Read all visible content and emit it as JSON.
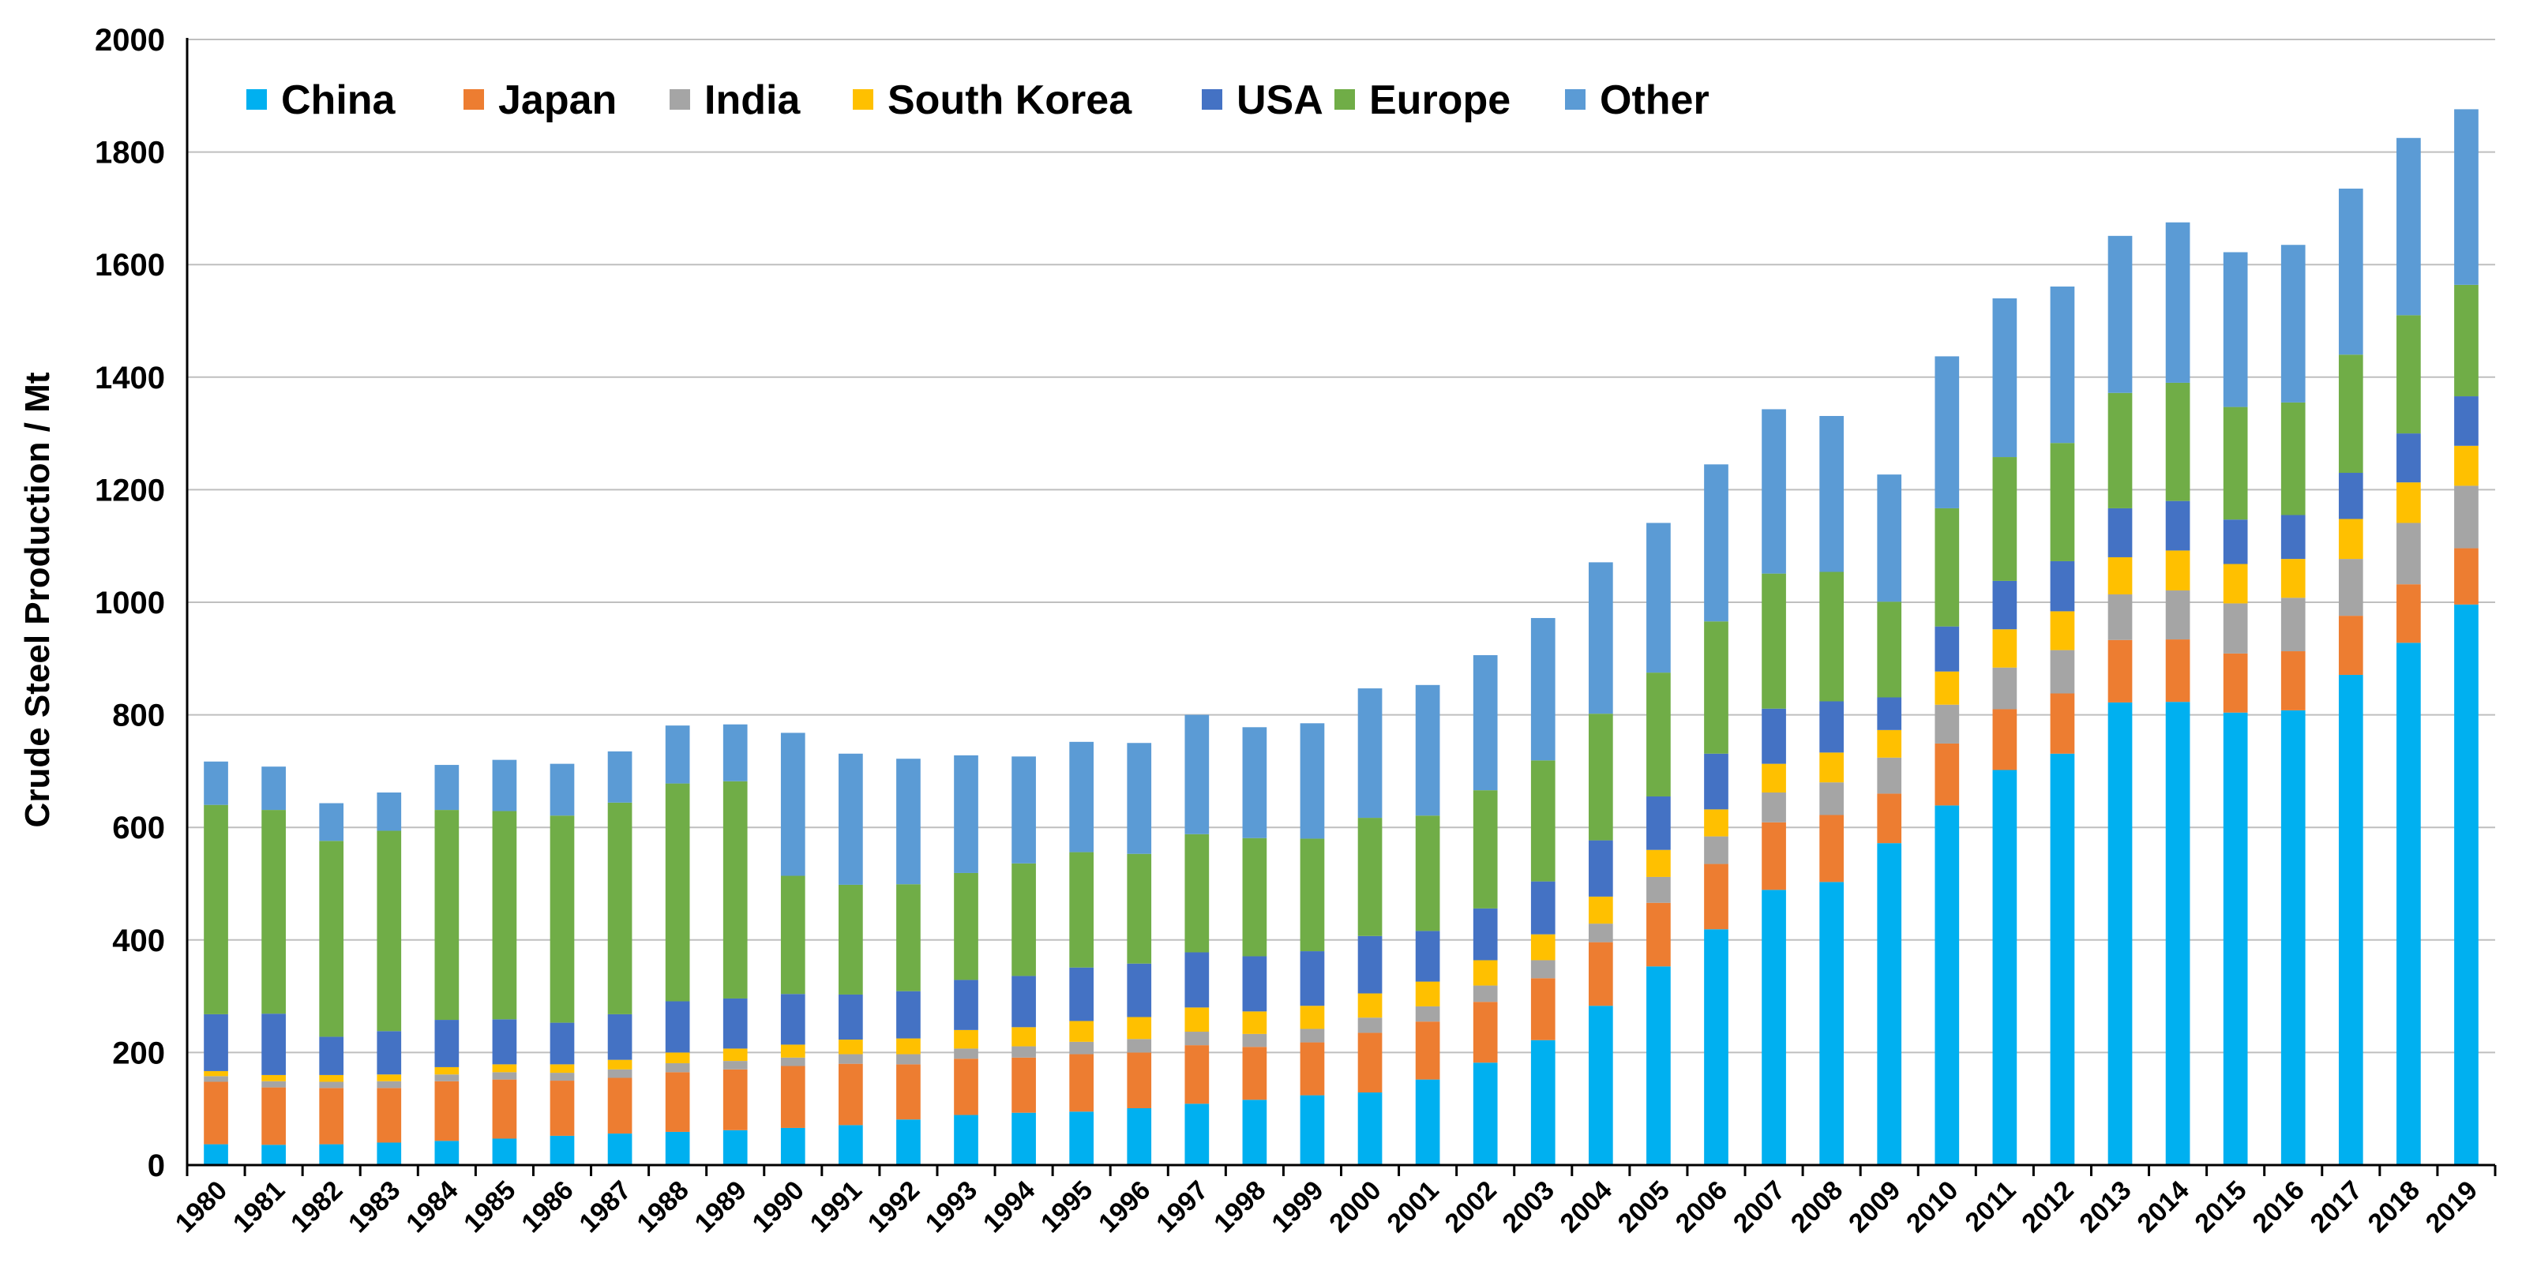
{
  "chart_data": {
    "type": "bar",
    "stacked": true,
    "title": "",
    "xlabel": "",
    "ylabel": "Crude Steel Production / Mt",
    "ylim": [
      0,
      2000
    ],
    "yticks": [
      "0",
      "200",
      "400",
      "600",
      "800",
      "1000",
      "1200",
      "1400",
      "1600",
      "1800",
      "2000"
    ],
    "grid": true,
    "legend_position": "top-left",
    "categories": [
      "1980",
      "1981",
      "1982",
      "1983",
      "1984",
      "1985",
      "1986",
      "1987",
      "1988",
      "1989",
      "1990",
      "1991",
      "1992",
      "1993",
      "1994",
      "1995",
      "1996",
      "1997",
      "1998",
      "1999",
      "2000",
      "2001",
      "2002",
      "2003",
      "2004",
      "2005",
      "2006",
      "2007",
      "2008",
      "2009",
      "2010",
      "2011",
      "2012",
      "2013",
      "2014",
      "2015",
      "2016",
      "2017",
      "2018",
      "2019"
    ],
    "series": [
      {
        "name": "China",
        "color": "#00B0F0",
        "values": [
          37,
          36,
          37,
          40,
          43,
          47,
          52,
          56,
          59,
          62,
          66,
          71,
          81,
          89,
          93,
          95,
          101,
          109,
          116,
          124,
          129,
          152,
          182,
          222,
          283,
          353,
          419,
          489,
          503,
          572,
          639,
          702,
          731,
          822,
          823,
          804,
          808,
          871,
          928,
          996
        ]
      },
      {
        "name": "Japan",
        "color": "#ED7D31",
        "values": [
          111,
          102,
          100,
          97,
          106,
          105,
          98,
          99,
          106,
          108,
          110,
          109,
          98,
          100,
          98,
          102,
          99,
          104,
          94,
          94,
          106,
          103,
          108,
          110,
          113,
          113,
          116,
          120,
          119,
          88,
          110,
          108,
          107,
          111,
          111,
          105,
          105,
          105,
          104,
          100
        ]
      },
      {
        "name": "India",
        "color": "#A5A5A5",
        "values": [
          10,
          11,
          11,
          12,
          12,
          13,
          14,
          15,
          16,
          15,
          15,
          17,
          18,
          18,
          20,
          22,
          24,
          24,
          23,
          24,
          27,
          27,
          29,
          32,
          33,
          46,
          49,
          53,
          58,
          64,
          69,
          74,
          77,
          81,
          87,
          89,
          95,
          101,
          109,
          111
        ]
      },
      {
        "name": "South Korea",
        "color": "#FFC000",
        "values": [
          9,
          11,
          12,
          12,
          13,
          14,
          15,
          17,
          19,
          22,
          23,
          26,
          28,
          33,
          34,
          37,
          39,
          43,
          40,
          41,
          43,
          44,
          45,
          46,
          48,
          48,
          48,
          51,
          53,
          49,
          59,
          68,
          69,
          66,
          71,
          70,
          69,
          71,
          72,
          71
        ]
      },
      {
        "name": "USA",
        "color": "#4472C4",
        "values": [
          101,
          109,
          68,
          77,
          84,
          80,
          74,
          81,
          91,
          89,
          90,
          80,
          84,
          89,
          91,
          95,
          95,
          98,
          98,
          97,
          102,
          90,
          92,
          94,
          100,
          95,
          99,
          98,
          91,
          58,
          80,
          86,
          89,
          87,
          88,
          79,
          78,
          82,
          87,
          88
        ]
      },
      {
        "name": "Europe",
        "color": "#70AD47",
        "values": [
          372,
          362,
          348,
          356,
          373,
          370,
          368,
          376,
          387,
          386,
          210,
          195,
          190,
          190,
          200,
          205,
          195,
          210,
          210,
          200,
          210,
          205,
          210,
          215,
          225,
          220,
          235,
          240,
          230,
          170,
          210,
          220,
          210,
          205,
          210,
          200,
          200,
          210,
          210,
          198
        ]
      },
      {
        "name": "Other",
        "color": "#5B9BD5",
        "values": [
          77,
          77,
          67,
          68,
          80,
          91,
          92,
          91,
          103,
          101,
          254,
          233,
          223,
          209,
          190,
          196,
          197,
          212,
          197,
          205,
          230,
          232,
          240,
          253,
          269,
          266,
          279,
          292,
          277,
          226,
          270,
          282,
          278,
          279,
          285,
          275,
          280,
          295,
          315,
          312
        ]
      }
    ]
  }
}
